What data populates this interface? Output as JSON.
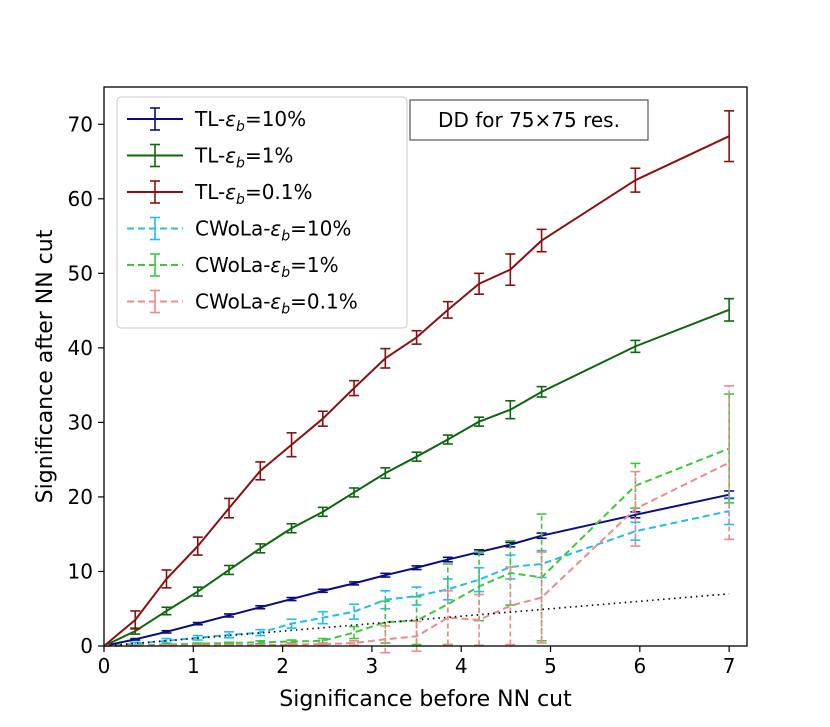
{
  "chart_data": {
    "type": "line",
    "title": "",
    "xlabel": "Significance before NN cut",
    "ylabel": "Significance after NN cut",
    "xlim": [
      0,
      7.2
    ],
    "ylim": [
      0,
      75
    ],
    "xticks": [
      0,
      1,
      2,
      3,
      4,
      5,
      6,
      7
    ],
    "yticks": [
      0,
      10,
      20,
      30,
      40,
      50,
      60,
      70
    ],
    "annotation": "DD for 75×75 res.",
    "legend_position": "upper-left",
    "x": [
      0,
      0.35,
      0.7,
      1.05,
      1.4,
      1.75,
      2.1,
      2.45,
      2.8,
      3.15,
      3.5,
      3.85,
      4.2,
      4.55,
      4.9,
      5.95,
      7.0
    ],
    "series": [
      {
        "name": "TL-εb=10%",
        "legend_prefix": "TL-",
        "legend_eps": "ε",
        "legend_sub": "b",
        "legend_suffix": "=10%",
        "color": "#0b0c82",
        "dashed": false,
        "values": [
          0,
          0.9,
          1.9,
          3.0,
          4.1,
          5.2,
          6.3,
          7.4,
          8.4,
          9.5,
          10.5,
          11.6,
          12.6,
          13.6,
          14.8,
          17.6,
          20.3
        ],
        "errors": [
          0,
          0.1,
          0.15,
          0.15,
          0.2,
          0.2,
          0.2,
          0.2,
          0.2,
          0.25,
          0.25,
          0.3,
          0.3,
          0.3,
          0.35,
          0.4,
          0.5
        ]
      },
      {
        "name": "TL-εb=1%",
        "legend_prefix": "TL-",
        "legend_eps": "ε",
        "legend_sub": "b",
        "legend_suffix": "=1%",
        "color": "#0b670b",
        "dashed": false,
        "values": [
          0,
          2.0,
          4.7,
          7.3,
          10.2,
          13.1,
          15.8,
          18.0,
          20.6,
          23.2,
          25.4,
          27.7,
          30.1,
          31.7,
          34.1,
          40.2,
          45.1
        ],
        "errors": [
          0,
          0.4,
          0.5,
          0.6,
          0.6,
          0.6,
          0.6,
          0.6,
          0.6,
          0.7,
          0.6,
          0.6,
          0.6,
          1.2,
          0.7,
          0.8,
          1.5
        ]
      },
      {
        "name": "TL-εb=0.1%",
        "legend_prefix": "TL-",
        "legend_eps": "ε",
        "legend_sub": "b",
        "legend_suffix": "=0.1%",
        "color": "#8c0f0f",
        "dashed": false,
        "values": [
          0,
          3.5,
          9.0,
          13.4,
          18.5,
          23.5,
          27.0,
          30.5,
          34.6,
          38.6,
          41.4,
          45.1,
          48.6,
          50.5,
          54.4,
          62.5,
          68.4
        ],
        "errors": [
          0,
          1.2,
          1.2,
          1.2,
          1.3,
          1.2,
          1.6,
          1.0,
          1.0,
          1.3,
          0.9,
          1.1,
          1.4,
          2.1,
          1.5,
          1.6,
          3.4
        ]
      },
      {
        "name": "CWoLa-εb=10%",
        "legend_prefix": "CWoLa-",
        "legend_eps": "ε",
        "legend_sub": "b",
        "legend_suffix": "=10%",
        "color": "#22bdf0",
        "dashed": true,
        "values": [
          0,
          0.3,
          0.7,
          1.1,
          1.5,
          1.8,
          3.0,
          3.8,
          4.6,
          6.2,
          6.7,
          7.6,
          8.9,
          10.6,
          11.0,
          15.4,
          18.1
        ],
        "errors": [
          0,
          0.2,
          0.3,
          0.3,
          0.4,
          0.4,
          0.6,
          0.8,
          1.0,
          1.2,
          1.2,
          1.4,
          1.6,
          1.6,
          1.8,
          1.2,
          1.8
        ]
      },
      {
        "name": "CWoLa-εb=1%",
        "legend_prefix": "CWoLa-",
        "legend_eps": "ε",
        "legend_sub": "b",
        "legend_suffix": "=1%",
        "color": "#3cc83c",
        "dashed": true,
        "values": [
          0,
          0.1,
          0.2,
          0.3,
          0.4,
          0.5,
          0.6,
          0.7,
          1.8,
          3.2,
          3.4,
          5.6,
          8.0,
          9.8,
          9.2,
          21.5,
          26.5
        ],
        "errors": [
          0,
          0.05,
          0.1,
          0.1,
          0.1,
          0.2,
          0.2,
          0.3,
          0.8,
          2.8,
          3.2,
          5.4,
          4.6,
          4.3,
          8.5,
          3.0,
          7.3
        ]
      },
      {
        "name": "CWoLa-εb=0.1%",
        "legend_prefix": "CWoLa-",
        "legend_eps": "ε",
        "legend_sub": "b",
        "legend_suffix": "=0.1%",
        "color": "#f0898a",
        "dashed": true,
        "values": [
          0,
          0.05,
          0.1,
          0.1,
          0.1,
          0.15,
          0.2,
          0.25,
          0.4,
          0.9,
          1.3,
          3.8,
          3.5,
          5.4,
          6.5,
          18.4,
          24.6
        ],
        "errors": [
          0,
          0.05,
          0.05,
          0.05,
          0.05,
          0.05,
          0.1,
          0.1,
          0.3,
          1.8,
          2.0,
          3.6,
          3.4,
          5.2,
          6.1,
          5.0,
          10.3
        ]
      },
      {
        "name": "reference",
        "color": "#000000",
        "dotted": true,
        "in_legend": false,
        "x": [
          0,
          7
        ],
        "values": [
          0,
          7
        ],
        "errors": []
      }
    ]
  }
}
